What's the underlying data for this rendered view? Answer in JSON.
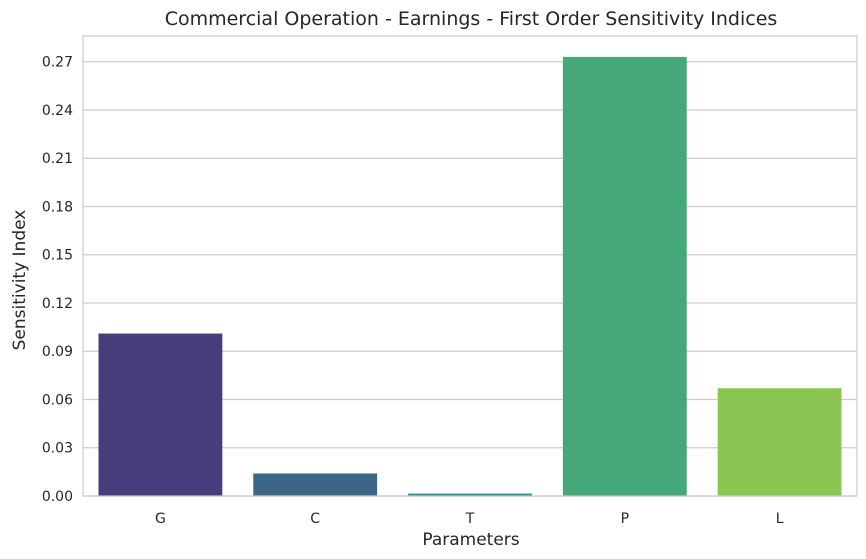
{
  "chart_data": {
    "type": "bar",
    "title": "Commercial Operation - Earnings - First Order Sensitivity Indices",
    "xlabel": "Parameters",
    "ylabel": "Sensitivity Index",
    "categories": [
      "G",
      "C",
      "T",
      "P",
      "L"
    ],
    "values": [
      0.101,
      0.014,
      0.0015,
      0.273,
      0.067
    ],
    "colors": [
      "#483d7c",
      "#3a6787",
      "#2f8d8a",
      "#44a879",
      "#8bc653"
    ],
    "ylim": [
      0,
      0.286
    ],
    "yticks": [
      "0.00",
      "0.03",
      "0.06",
      "0.09",
      "0.12",
      "0.15",
      "0.18",
      "0.21",
      "0.24",
      "0.27"
    ],
    "grid": "horizontal",
    "legend": "none"
  }
}
